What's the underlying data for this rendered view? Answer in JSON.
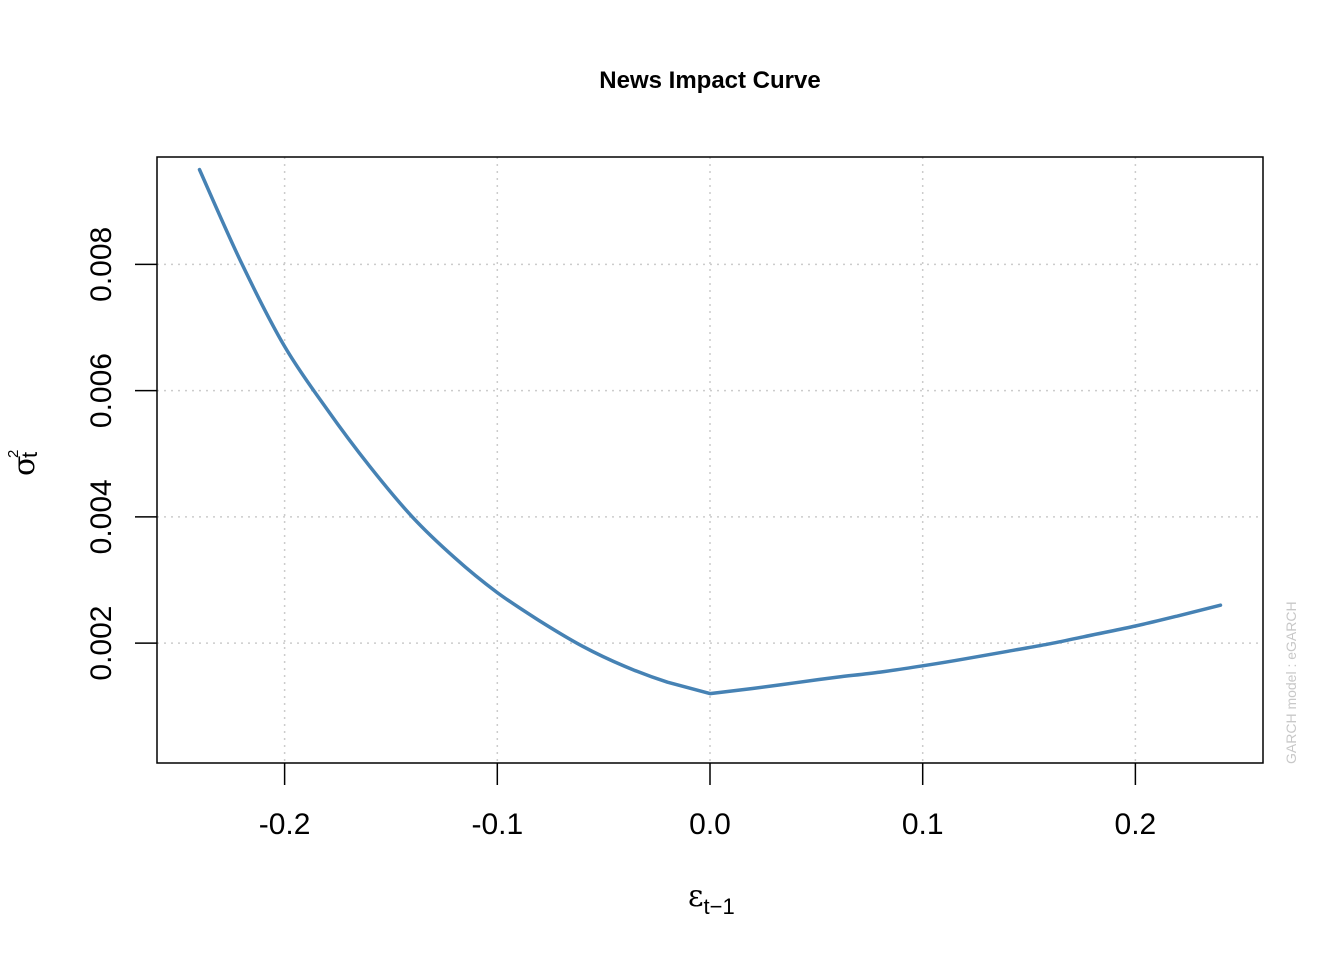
{
  "chart_data": {
    "type": "line",
    "title": "News Impact Curve",
    "xlabel": {
      "symbol": "ε",
      "subscript": "t−1"
    },
    "ylabel": {
      "symbol": "σ",
      "superscript": "2",
      "subscript": "t"
    },
    "side_note": "GARCH model :  eGARCH",
    "xlim": [
      -0.26,
      0.26
    ],
    "ylim": [
      0.0001,
      0.0097
    ],
    "x_ticks": [
      -0.2,
      -0.1,
      0.0,
      0.1,
      0.2
    ],
    "x_tick_labels": [
      "-0.2",
      "-0.1",
      "0.0",
      "0.1",
      "0.2"
    ],
    "y_ticks": [
      0.002,
      0.004,
      0.006,
      0.008
    ],
    "y_tick_labels": [
      "0.002",
      "0.004",
      "0.006",
      "0.008"
    ],
    "grid": true,
    "legend": "none",
    "series": [
      {
        "color": "#4682B4",
        "x": [
          -0.24,
          -0.22,
          -0.2,
          -0.18,
          -0.16,
          -0.14,
          -0.12,
          -0.1,
          -0.08,
          -0.06,
          -0.04,
          -0.02,
          0.0,
          0.02,
          0.04,
          0.06,
          0.08,
          0.1,
          0.12,
          0.14,
          0.16,
          0.18,
          0.2,
          0.22,
          0.24
        ],
        "y": [
          0.0095,
          0.008,
          0.0067,
          0.0057,
          0.0048,
          0.004,
          0.00335,
          0.0028,
          0.00235,
          0.00195,
          0.00163,
          0.00138,
          0.0012,
          0.00128,
          0.00137,
          0.00146,
          0.00154,
          0.00164,
          0.00175,
          0.00187,
          0.00199,
          0.00213,
          0.00227,
          0.00243,
          0.0026
        ]
      }
    ]
  }
}
